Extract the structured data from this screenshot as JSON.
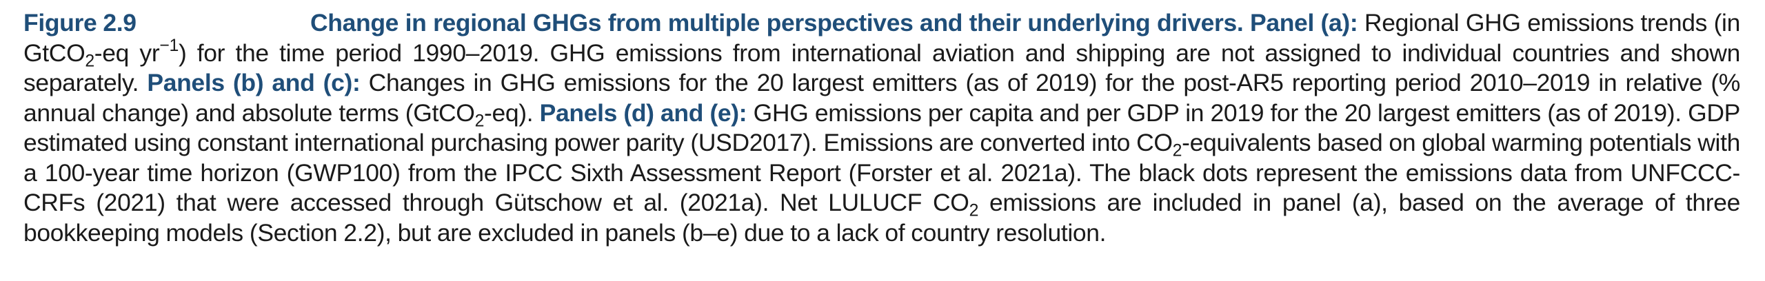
{
  "figure_label": "Figure 2.9",
  "title": "Change in regional GHGs from multiple perspectives and their underlying drivers.",
  "panel_a_label": "Panel (a):",
  "panel_a_text_1": "Regional GHG emissions trends (in GtCO",
  "sub_2": "2",
  "panel_a_text_2": "-eq yr",
  "sup_minus1": "−1",
  "panel_a_text_3": ") for the time period 1990–2019. GHG emissions from international aviation and shipping are not assigned to individual countries and shown separately.",
  "panels_bc_label": "Panels (b) and (c):",
  "panels_bc_text_1": "Changes in GHG emissions for the 20 largest emitters (as of 2019) for the post-AR5 reporting period 2010–2019 in relative (% annual change) and absolute terms (GtCO",
  "panels_bc_text_2": "-eq).",
  "panels_de_label": "Panels (d) and (e):",
  "panels_de_text_1": "GHG emissions per capita and per GDP in 2019 for the 20 largest emitters (as of 2019). GDP estimated using constant international purchasing power parity (USD2017). Emissions are converted into CO",
  "panels_de_text_2": "-equivalents based on global warming potentials with a 100-year time horizon (GWP100) from the IPCC Sixth Assessment Report (Forster et al. 2021a). The black dots represent the emissions data from UNFCCC-CRFs (2021) that were accessed through Gütschow et al. (2021a). Net LULUCF CO",
  "panels_de_text_3": "emissions are included in panel (a), based on the average of three bookkeeping models (Section 2.2), but are excluded in panels (b–e) due to a lack of country resolution."
}
